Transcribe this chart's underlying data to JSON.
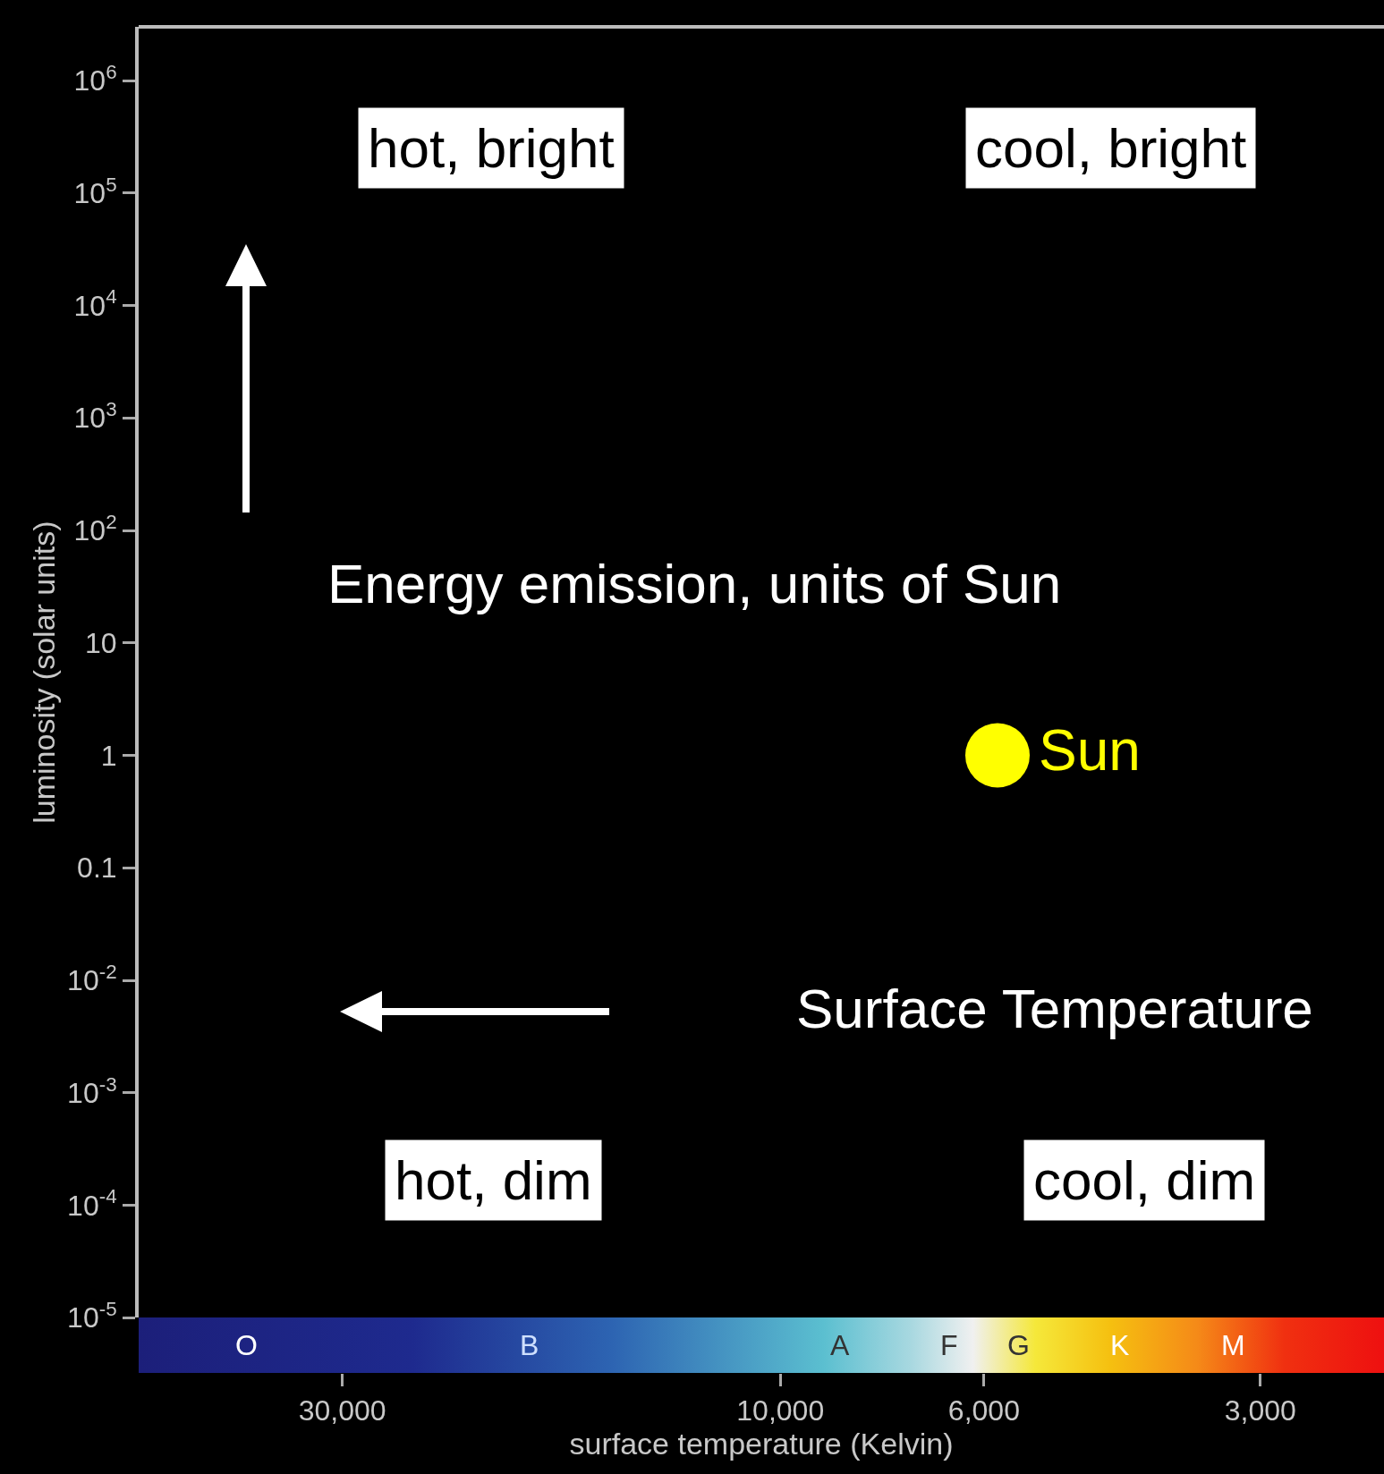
{
  "chart_data": {
    "type": "scatter",
    "xlabel": "surface temperature (Kelvin)",
    "ylabel": "luminosity (solar units)",
    "log": "xy",
    "grid": false,
    "legend": false,
    "marker": "circle",
    "xlim": [
      50000,
      2200
    ],
    "ylim": [
      1e-05,
      3000000
    ],
    "xticks": [
      {
        "value": 30000,
        "label": "30,000"
      },
      {
        "value": 10000,
        "label": "10,000"
      },
      {
        "value": 6000,
        "label": "6,000"
      },
      {
        "value": 3000,
        "label": "3,000"
      }
    ],
    "yticks": [
      {
        "value": 1000000,
        "label": "10$^{6}$"
      },
      {
        "value": 100000,
        "label": "10$^{5}$"
      },
      {
        "value": 10000,
        "label": "10$^{4}$"
      },
      {
        "value": 1000,
        "label": "10$^{3}$"
      },
      {
        "value": 100,
        "label": "10$^{2}$"
      },
      10,
      1,
      0.1,
      {
        "value": 0.01,
        "label": "10$^{-2}$"
      },
      {
        "value": 0.001,
        "label": "10$^{-3}$"
      },
      {
        "value": 0.0001,
        "label": "10$^{-4}$"
      },
      {
        "value": 1e-05,
        "label": "10$^{-5}$"
      }
    ],
    "series": [
      {
        "name": "Sun",
        "color": "#ffff00",
        "x": [
          5800
        ],
        "values": [
          1
        ]
      }
    ],
    "annotations": [
      "hot, bright",
      "cool, bright",
      "Energy emission, units of Sun",
      "Surface Temperature",
      "hot, dim",
      "cool, dim",
      "O",
      "B",
      "A",
      "F",
      "G",
      "K",
      "M"
    ]
  }
}
